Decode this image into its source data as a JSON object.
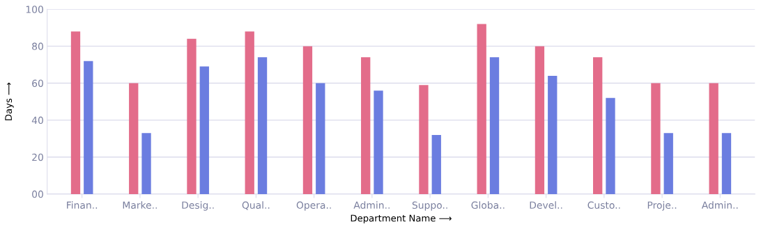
{
  "chart_data": {
    "type": "bar",
    "xlabel": "Department Name ⟶",
    "ylabel": "Days ⟶",
    "categories": [
      "Finan..",
      "Marke..",
      "Desig..",
      "Qual..",
      "Opera..",
      "Admin..",
      "Suppo..",
      "Globa..",
      "Devel..",
      "Custo..",
      "Proje..",
      "Admin.."
    ],
    "series": [
      {
        "color": "#e36c8a",
        "values": [
          88,
          60,
          84,
          88,
          80,
          74,
          59,
          92,
          80,
          74,
          60,
          60
        ]
      },
      {
        "color": "#6b7de0",
        "values": [
          72,
          33,
          69,
          74,
          60,
          56,
          32,
          74,
          64,
          52,
          33,
          33
        ]
      }
    ],
    "ylim": [
      0,
      100
    ],
    "yticks": [
      {
        "value": 0,
        "label": "00"
      },
      20,
      40,
      60,
      80,
      100
    ],
    "grid": "y"
  }
}
